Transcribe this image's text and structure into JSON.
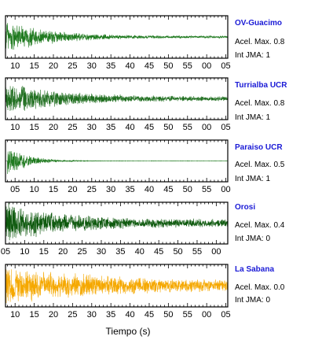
{
  "chart_data": [
    {
      "type": "line",
      "station": "OV-Guacimo",
      "accel_label": "Acel. Max.",
      "accel_value": "0.8",
      "intensity_label": "Int JMA:",
      "intensity_value": "1",
      "color": "#1f7a1f",
      "x_tick_labels": [
        "10",
        "15",
        "20",
        "25",
        "30",
        "35",
        "40",
        "45",
        "50",
        "55",
        "00",
        "05"
      ],
      "x_start": 7.5,
      "x_end": 65.5,
      "signal": {
        "amplitude": 0.95,
        "decay": 0.09,
        "noise": 0.06,
        "onset": 7.5
      }
    },
    {
      "type": "line",
      "station": "Turrialba UCR",
      "accel_label": "Acel. Max.",
      "accel_value": "0.8",
      "intensity_label": "Int JMA:",
      "intensity_value": "1",
      "color": "#1f6e1f",
      "x_tick_labels": [
        "10",
        "15",
        "20",
        "25",
        "30",
        "35",
        "40",
        "45",
        "50",
        "55",
        "00",
        "05"
      ],
      "x_start": 7.5,
      "x_end": 65.5,
      "signal": {
        "amplitude": 0.9,
        "decay": 0.07,
        "noise": 0.12,
        "onset": 7.5
      }
    },
    {
      "type": "line",
      "station": "Paraiso UCR",
      "accel_label": "Acel. Max.",
      "accel_value": "0.5",
      "intensity_label": "Int JMA:",
      "intensity_value": "1",
      "color": "#1f7a1f",
      "x_tick_labels": [
        "05",
        "10",
        "15",
        "20",
        "25",
        "30",
        "35",
        "40",
        "45",
        "50",
        "55",
        "00"
      ],
      "x_start": 2.5,
      "x_end": 60.5,
      "signal": {
        "amplitude": 0.95,
        "decay": 0.2,
        "noise": 0.01,
        "onset": 3.0
      }
    },
    {
      "type": "line",
      "station": "Orosi",
      "accel_label": "Acel. Max.",
      "accel_value": "0.4",
      "intensity_label": "Int JMA:",
      "intensity_value": "0",
      "color": "#0f5a0f",
      "x_tick_labels": [
        "05",
        "10",
        "15",
        "20",
        "25",
        "30",
        "35",
        "40",
        "45",
        "50",
        "55",
        "00"
      ],
      "x_start": 5.0,
      "x_end": 63.0,
      "signal": {
        "amplitude": 0.95,
        "decay": 0.07,
        "noise": 0.22,
        "onset": 5.0
      }
    },
    {
      "type": "line",
      "station": "La Sabana",
      "accel_label": "Acel. Max.",
      "accel_value": "0.0",
      "intensity_label": "Int JMA:",
      "intensity_value": "0",
      "color": "#f5a800",
      "x_tick_labels": [
        "10",
        "15",
        "20",
        "25",
        "30",
        "35",
        "40",
        "45",
        "50",
        "55",
        "00",
        "05"
      ],
      "x_start": 7.5,
      "x_end": 65.5,
      "signal": {
        "amplitude": 0.9,
        "decay": 0.035,
        "noise": 0.2,
        "onset": 7.5
      }
    }
  ],
  "xlabel": "Tiempo (s)"
}
